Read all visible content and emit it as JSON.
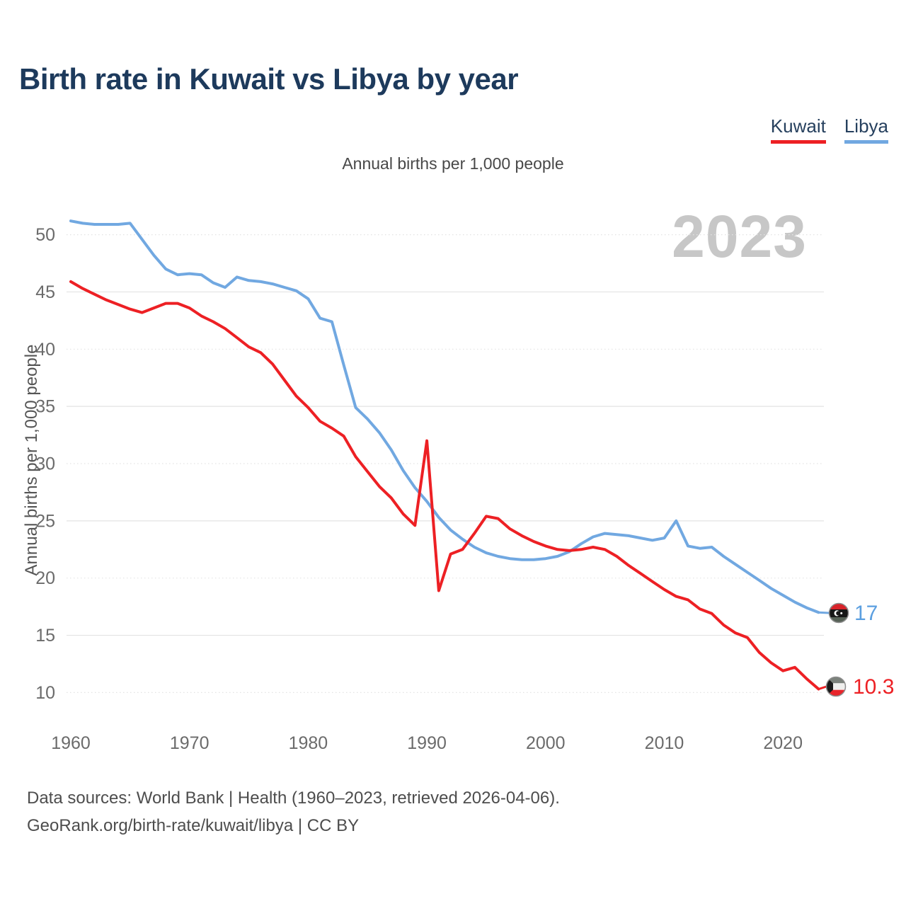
{
  "header": {
    "title": "Birth rate in Kuwait vs Libya by year"
  },
  "legend": {
    "items": [
      {
        "label": "Kuwait",
        "color": "#ed2024"
      },
      {
        "label": "Libya",
        "color": "#71a8e1"
      }
    ]
  },
  "subtitle": "Annual births per 1,000 people",
  "watermark": "2023",
  "endpoints": {
    "libya": {
      "label": "17",
      "color": "#5b9fe0"
    },
    "kuwait": {
      "label": "10.3",
      "color": "#ed2024"
    }
  },
  "footer": {
    "line1": "Data sources: World Bank | Health (1960–2023, retrieved 2026-04-06).",
    "line2": "GeoRank.org/birth-rate/kuwait/libya | CC BY"
  },
  "chart_data": {
    "type": "line",
    "title": "Birth rate in Kuwait vs Libya by year",
    "subtitle": "Annual births per 1,000 people",
    "ylabel": "Annual births per 1,000 people",
    "xlabel": "",
    "grid": true,
    "legend_position": "top-right",
    "xlim": [
      1960,
      2023
    ],
    "ylim": [
      10,
      50
    ],
    "xticks": [
      1960,
      1970,
      1980,
      1990,
      2000,
      2010,
      2020
    ],
    "yticks": [
      10,
      15,
      20,
      25,
      30,
      35,
      40,
      45,
      50
    ],
    "x": [
      1960,
      1961,
      1962,
      1963,
      1964,
      1965,
      1966,
      1967,
      1968,
      1969,
      1970,
      1971,
      1972,
      1973,
      1974,
      1975,
      1976,
      1977,
      1978,
      1979,
      1980,
      1981,
      1982,
      1983,
      1984,
      1985,
      1986,
      1987,
      1988,
      1989,
      1990,
      1991,
      1992,
      1993,
      1994,
      1995,
      1996,
      1997,
      1998,
      1999,
      2000,
      2001,
      2002,
      2003,
      2004,
      2005,
      2006,
      2007,
      2008,
      2009,
      2010,
      2011,
      2012,
      2013,
      2014,
      2015,
      2016,
      2017,
      2018,
      2019,
      2020,
      2021,
      2022,
      2023
    ],
    "series": [
      {
        "name": "Kuwait",
        "color": "#ed2024",
        "values": [
          45.9,
          45.3,
          44.8,
          44.3,
          43.9,
          43.5,
          43.2,
          43.6,
          44.0,
          44.0,
          43.6,
          42.9,
          42.4,
          41.8,
          41.0,
          40.2,
          39.7,
          38.7,
          37.3,
          35.9,
          34.9,
          33.7,
          33.1,
          32.4,
          30.6,
          29.3,
          28.0,
          27.0,
          25.6,
          24.6,
          32.0,
          18.9,
          22.1,
          22.5,
          23.9,
          25.4,
          25.2,
          24.3,
          23.7,
          23.2,
          22.8,
          22.5,
          22.4,
          22.5,
          22.7,
          22.5,
          21.9,
          21.1,
          20.4,
          19.7,
          19.0,
          18.4,
          18.1,
          17.3,
          16.9,
          15.9,
          15.2,
          14.8,
          13.5,
          12.6,
          11.9,
          12.2,
          11.2,
          10.3
        ]
      },
      {
        "name": "Libya",
        "color": "#71a8e1",
        "values": [
          51.2,
          51.0,
          50.9,
          50.9,
          50.9,
          51.0,
          49.6,
          48.2,
          47.0,
          46.5,
          46.6,
          46.5,
          45.8,
          45.4,
          46.3,
          46.0,
          45.9,
          45.7,
          45.4,
          45.1,
          44.4,
          42.7,
          42.4,
          38.6,
          34.9,
          33.9,
          32.7,
          31.2,
          29.4,
          27.9,
          26.7,
          25.3,
          24.2,
          23.4,
          22.7,
          22.2,
          21.9,
          21.7,
          21.6,
          21.6,
          21.7,
          21.9,
          22.3,
          23.0,
          23.6,
          23.9,
          23.8,
          23.7,
          23.5,
          23.3,
          23.5,
          25.0,
          22.8,
          22.6,
          22.7,
          21.9,
          21.2,
          20.5,
          19.8,
          19.1,
          18.5,
          17.9,
          17.4,
          17.0
        ]
      }
    ],
    "end_labels": {
      "Kuwait": 10.3,
      "Libya": 17
    }
  }
}
